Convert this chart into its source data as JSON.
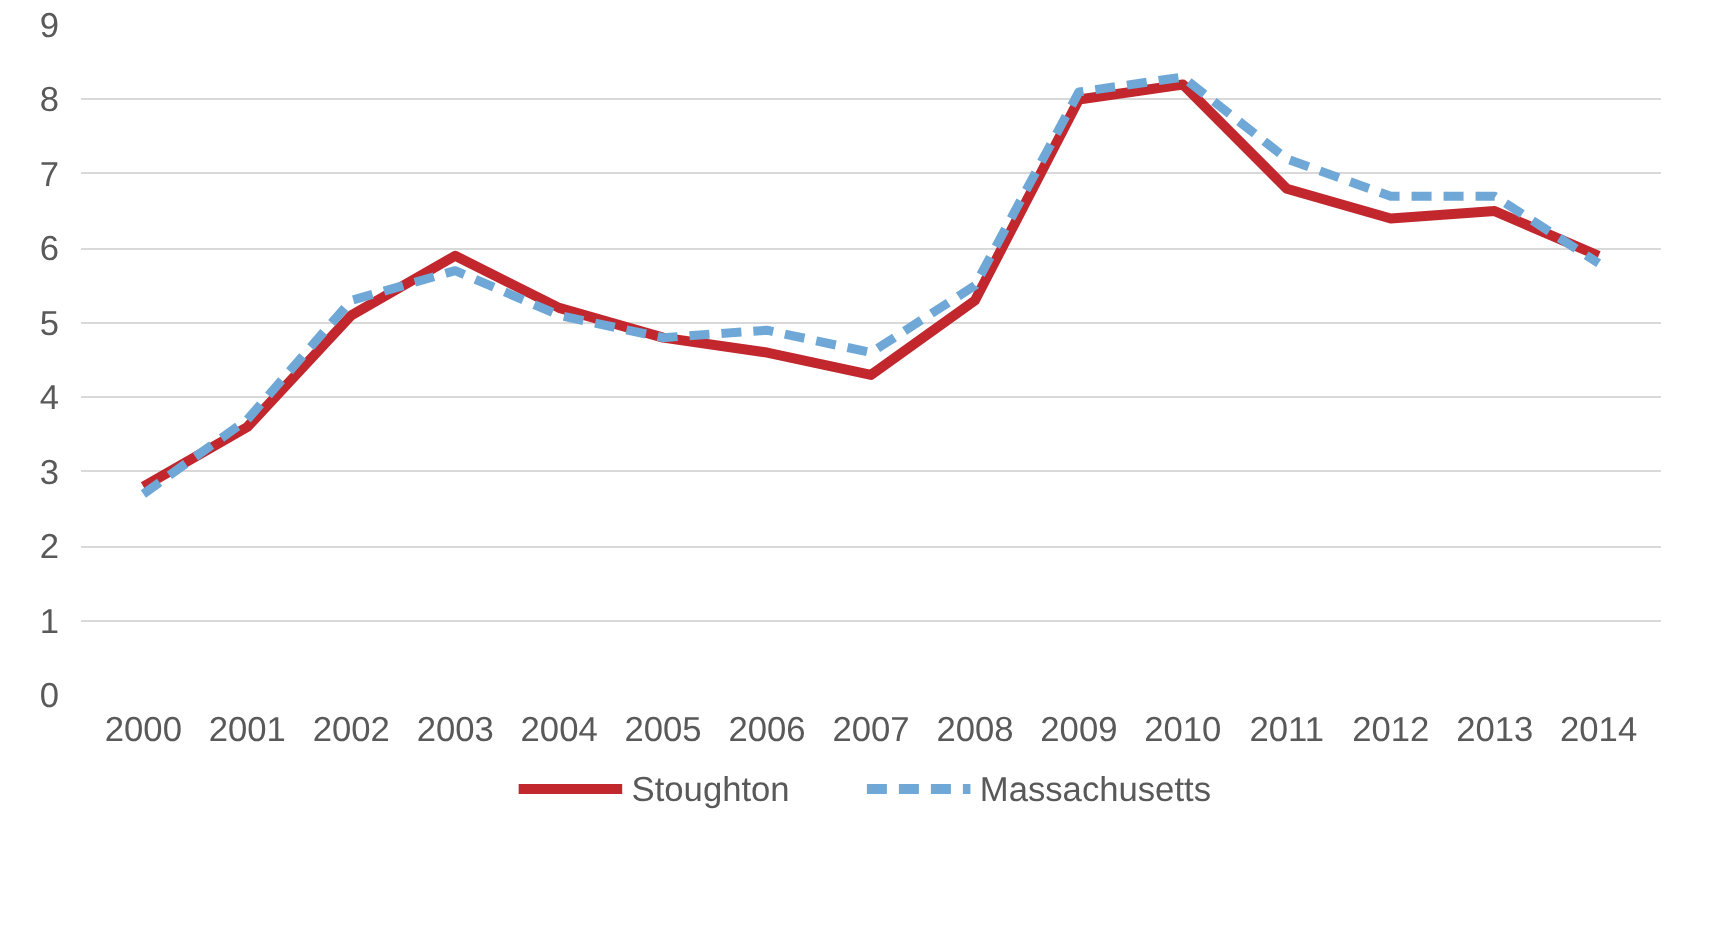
{
  "chart_data": {
    "type": "line",
    "categories": [
      "2000",
      "2001",
      "2002",
      "2003",
      "2004",
      "2005",
      "2006",
      "2007",
      "2008",
      "2009",
      "2010",
      "2011",
      "2012",
      "2013",
      "2014"
    ],
    "series": [
      {
        "name": "Stoughton",
        "color": "#c1272d",
        "line_style": "solid",
        "values": [
          2.8,
          3.6,
          5.1,
          5.9,
          5.2,
          4.8,
          4.6,
          4.3,
          5.3,
          8.0,
          8.2,
          6.8,
          6.4,
          6.5,
          5.9
        ]
      },
      {
        "name": "Massachusetts",
        "color": "#6fa8d6",
        "line_style": "dashed",
        "values": [
          2.7,
          3.7,
          5.3,
          5.7,
          5.1,
          4.8,
          4.9,
          4.6,
          5.5,
          8.1,
          8.3,
          7.2,
          6.7,
          6.7,
          5.8
        ]
      }
    ],
    "ylim": [
      0,
      9
    ],
    "yticks": [
      0,
      1,
      2,
      3,
      4,
      5,
      6,
      7,
      8,
      9
    ],
    "grid": "y",
    "legend": "bottom",
    "marker": "none"
  }
}
